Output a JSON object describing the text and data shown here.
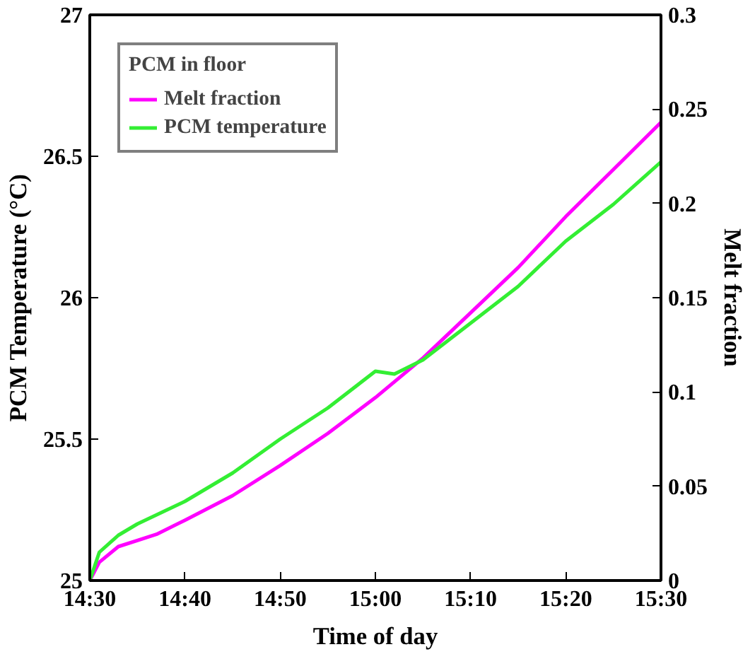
{
  "chart_data": {
    "type": "line",
    "xlabel": "Time of day",
    "ylabel": "PCM Temperature (°C)",
    "y2label": "Melt fraction",
    "legend_title": "PCM in floor",
    "legend": "top left",
    "grid": false,
    "marker": "none",
    "line_style": "solid",
    "xlim": [
      14.5,
      15.5
    ],
    "xticks": [
      {
        "value": 14.5,
        "label": "14:30"
      },
      {
        "value": 14.6667,
        "label": "14:40"
      },
      {
        "value": 14.8333,
        "label": "14:50"
      },
      {
        "value": 15.0,
        "label": "15:00"
      },
      {
        "value": 15.1667,
        "label": "15:10"
      },
      {
        "value": 15.3333,
        "label": "15:20"
      },
      {
        "value": 15.5,
        "label": "15:30"
      }
    ],
    "ylim": [
      25,
      27
    ],
    "yticks": [
      25,
      25.5,
      26,
      26.5,
      27
    ],
    "y2lim": [
      0,
      0.3
    ],
    "y2ticks": [
      0,
      0.05,
      0.1,
      0.15,
      0.2,
      0.25,
      0.3
    ],
    "series": [
      {
        "name": "Melt fraction",
        "color": "#ff00ff",
        "axis": "y2",
        "x": [
          14.5,
          14.5167,
          14.55,
          14.6167,
          14.6667,
          14.75,
          14.8333,
          14.9167,
          15.0,
          15.0833,
          15.1667,
          15.25,
          15.3333,
          15.4167,
          15.5
        ],
        "values": [
          0,
          0.0097,
          0.018,
          0.0245,
          0.032,
          0.045,
          0.061,
          0.078,
          0.097,
          0.118,
          0.142,
          0.166,
          0.193,
          0.218,
          0.243
        ]
      },
      {
        "name": "PCM temperature",
        "color": "#33ee33",
        "x": [
          14.5,
          14.5167,
          14.55,
          14.5833,
          14.6667,
          14.75,
          14.8333,
          14.9167,
          15.0,
          15.0333,
          15.0833,
          15.1667,
          15.25,
          15.3333,
          15.4167,
          15.5
        ],
        "values": [
          25,
          25.1,
          25.16,
          25.2,
          25.28,
          25.38,
          25.5,
          25.61,
          25.74,
          25.73,
          25.78,
          25.91,
          26.04,
          26.2,
          26.33,
          26.48
        ]
      }
    ]
  }
}
